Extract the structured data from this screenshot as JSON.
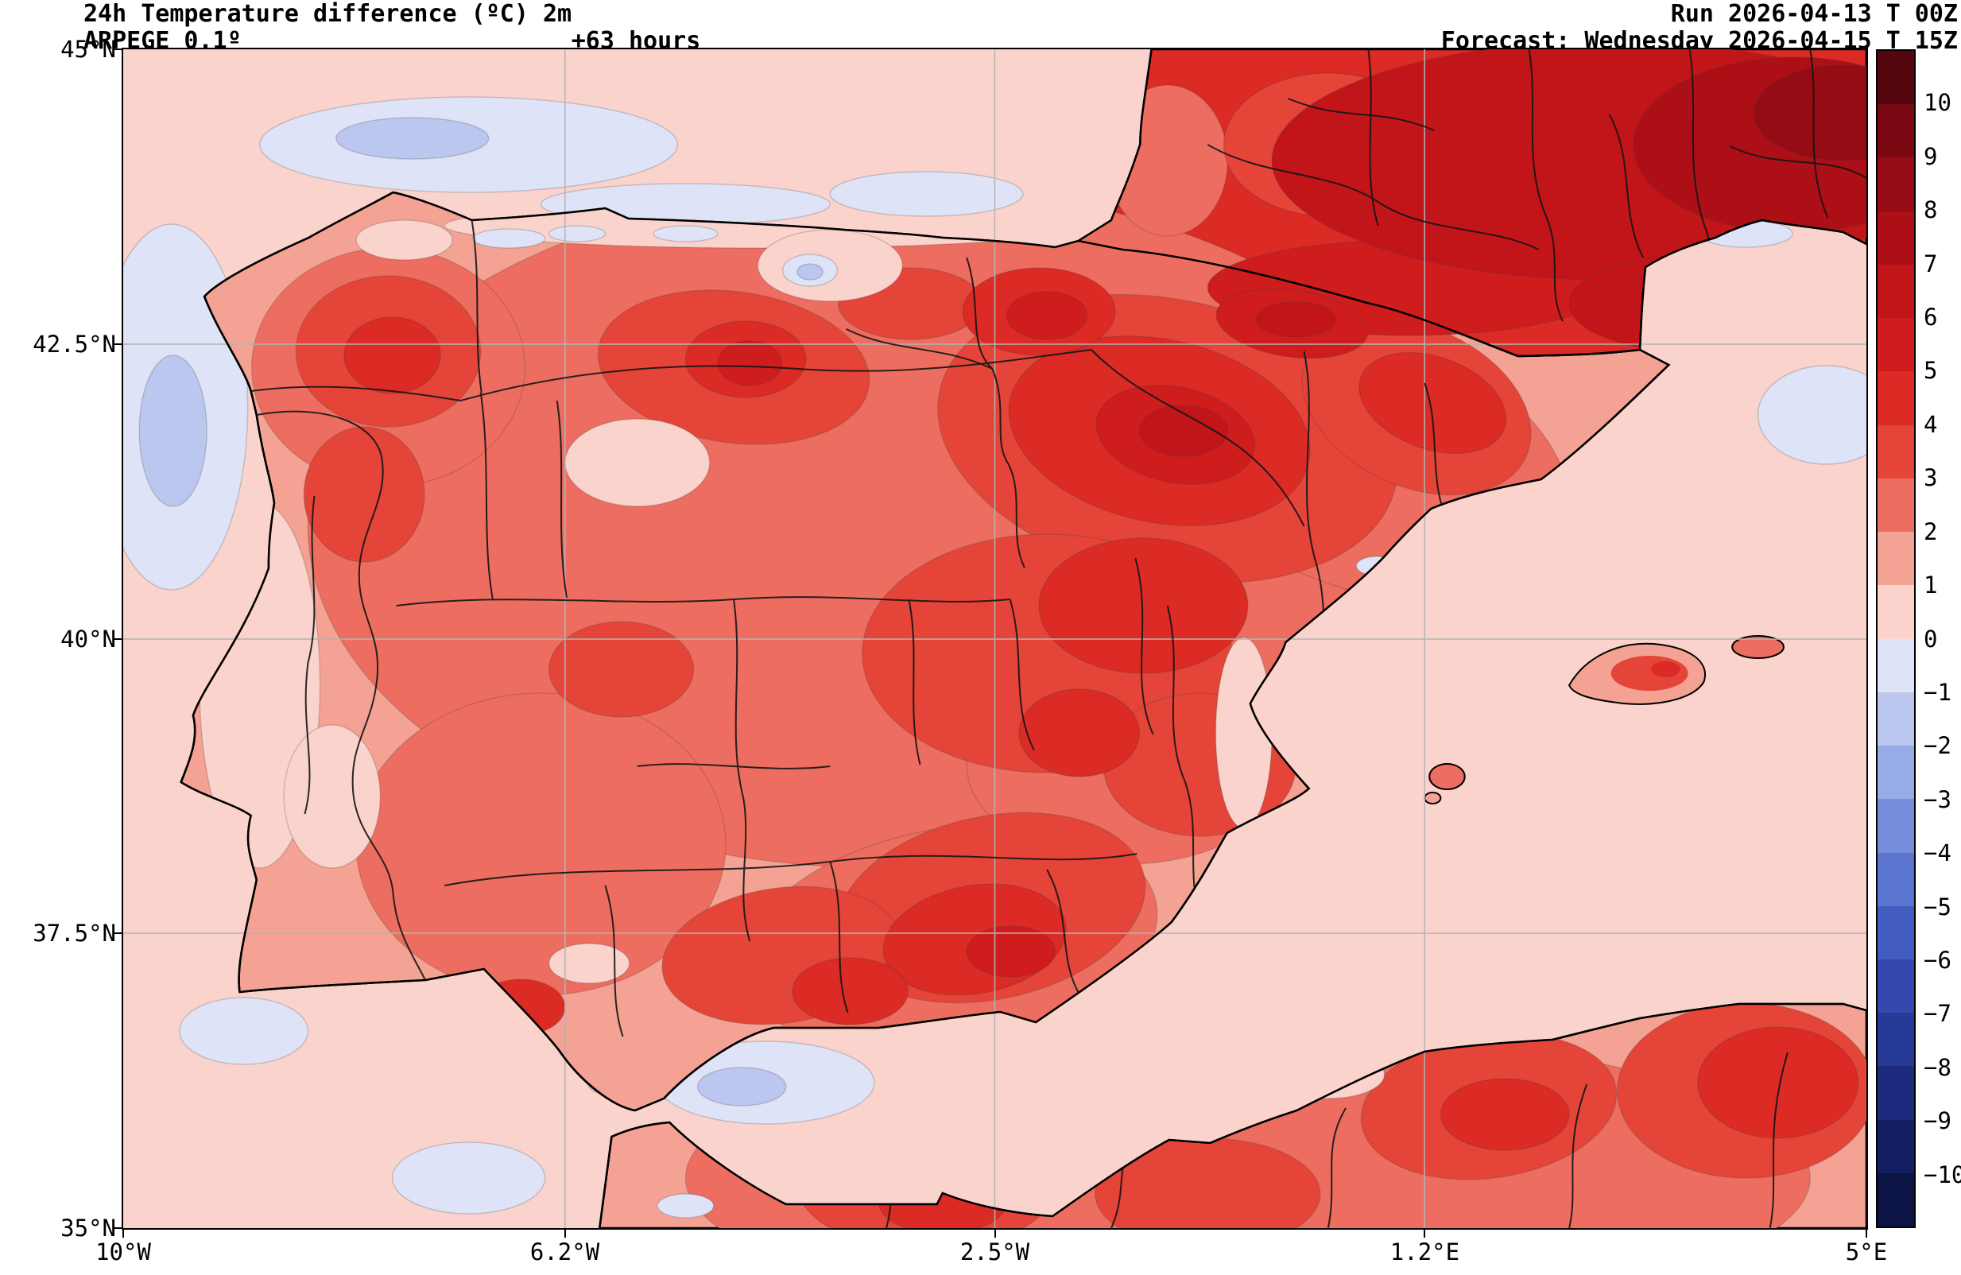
{
  "header": {
    "title_line1": "24h Temperature difference (ºC) 2m",
    "title_line2": "ARPEGE 0.1º",
    "lead_time": "+63 hours",
    "run_line": "Run 2026-04-13 T 00Z",
    "forecast_line": "Forecast: Wednesday 2026-04-15 T 15Z"
  },
  "axes": {
    "x_ticks": [
      "10°W",
      "6.2°W",
      "2.5°W",
      "1.2°E",
      "5°E"
    ],
    "y_ticks": [
      "45°N",
      "42.5°N",
      "40°N",
      "37.5°N",
      "35°N"
    ]
  },
  "colorbar": {
    "ticks": [
      10,
      9,
      8,
      7,
      6,
      5,
      4,
      3,
      2,
      1,
      0,
      -1,
      -2,
      -3,
      -4,
      -5,
      -6,
      -7,
      -8,
      -9,
      -10
    ],
    "band_colors_top_to_bottom": [
      "#56060f",
      "#7a0813",
      "#950c14",
      "#ad0f16",
      "#c2151a",
      "#cf1d1e",
      "#dc2a24",
      "#e54538",
      "#ed6e60",
      "#f4a294",
      "#fad4cc",
      "#dfe3f7",
      "#bcc7ef",
      "#97abe6",
      "#758edb",
      "#5a74cf",
      "#445cc0",
      "#3448ad",
      "#273a97",
      "#1c2b7e",
      "#131e63",
      "#0b1445"
    ]
  },
  "chart_data": {
    "type": "heatmap",
    "title": "24h Temperature difference (ºC) 2m",
    "model": "ARPEGE 0.1º",
    "variable": "24-hour difference of 2 m temperature",
    "unit": "ºC",
    "run": "2026-04-13 00Z",
    "lead_hours": 63,
    "valid_time": "Wednesday 2026-04-15 15Z",
    "region": "Iberian Peninsula, southern France, Balearic Islands and northwest Africa",
    "x_axis": {
      "label": "longitude",
      "tick_labels": [
        "10°W",
        "6.2°W",
        "2.5°W",
        "1.2°E",
        "5°E"
      ],
      "range_deg": [
        -10,
        5
      ]
    },
    "y_axis": {
      "label": "latitude",
      "tick_labels": [
        "35°N",
        "37.5°N",
        "40°N",
        "42.5°N",
        "45°N"
      ],
      "range_deg": [
        35,
        45
      ]
    },
    "grid": true,
    "legend_position": "right-colorbar",
    "colorbar_ticks_c": [
      10,
      9,
      8,
      7,
      6,
      5,
      4,
      3,
      2,
      1,
      0,
      -1,
      -2,
      -3,
      -4,
      -5,
      -6,
      -7,
      -8,
      -9,
      -10
    ],
    "field_summary": [
      {
        "area": "Southern France and eastern Pyrenees",
        "value_c": "+5 to +9"
      },
      {
        "area": "Ebro valley, Aragon, Navarra and inland Catalonia",
        "value_c": "+4 to +7"
      },
      {
        "area": "Central plateau, Cuenca/Teruel and eastern La Mancha",
        "value_c": "+3 to +6"
      },
      {
        "area": "Galicia and interior northwest Spain",
        "value_c": "+2 to +5"
      },
      {
        "area": "Portugal and Atlantic coastal strip",
        "value_c": "+1 to +3"
      },
      {
        "area": "Eastern Andalusia and Granada/Almeria interior",
        "value_c": "+3 to +5"
      },
      {
        "area": "Cantabrian and Atlantic coastal waters",
        "value_c": "0 to -1"
      },
      {
        "area": "Alboran Sea and scattered north-coast spots",
        "value_c": "-1 to -2"
      },
      {
        "area": "Northwest Africa interior (Algeria, Rif)",
        "value_c": "+2 to +6"
      },
      {
        "area": "Balearic Islands",
        "value_c": "+1 to +4"
      }
    ]
  }
}
